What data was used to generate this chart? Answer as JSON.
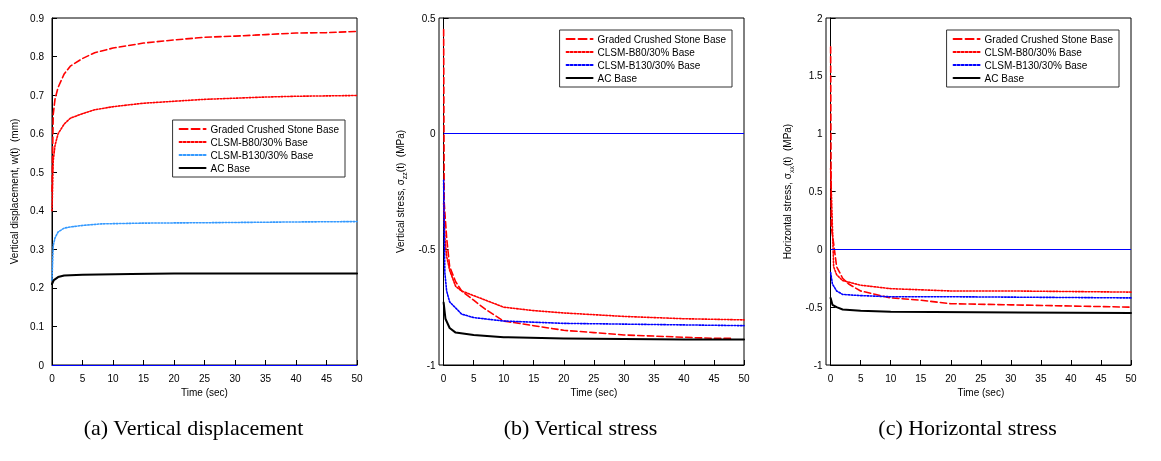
{
  "chart_data": [
    {
      "type": "line",
      "title": "(a) Vertical displacement",
      "xlabel": "Time (sec)",
      "ylabel": "Vertical displacement, w(t)  (mm)",
      "xlim": [
        0,
        50
      ],
      "xticks": [
        0,
        5,
        10,
        15,
        20,
        25,
        30,
        35,
        40,
        45,
        50
      ],
      "ylim": [
        0,
        0.9
      ],
      "yticks": [
        0,
        0.1,
        0.2,
        0.3,
        0.4,
        0.5,
        0.6,
        0.7,
        0.8,
        0.9
      ],
      "grid": false,
      "legend": "right",
      "marker": "none",
      "ref_lines": [
        {
          "axis": "y",
          "value": 0,
          "color": "#0000ff"
        }
      ],
      "series": [
        {
          "name": "Graded Crushed Stone Base",
          "color": "#ff0000",
          "line_style": "dashed",
          "x": [
            0,
            0.2,
            0.5,
            1,
            2,
            3,
            5,
            7,
            10,
            15,
            20,
            25,
            30,
            35,
            40,
            45,
            50
          ],
          "values": [
            0.45,
            0.65,
            0.69,
            0.72,
            0.755,
            0.775,
            0.795,
            0.81,
            0.822,
            0.835,
            0.843,
            0.85,
            0.853,
            0.857,
            0.861,
            0.862,
            0.865
          ]
        },
        {
          "name": "CLSM-B80/30% Base",
          "color": "#ff0000",
          "line_style": "dotted",
          "x": [
            0,
            0.2,
            0.5,
            1,
            2,
            3,
            5,
            7,
            10,
            15,
            20,
            25,
            30,
            35,
            40,
            45,
            50
          ],
          "values": [
            0.4,
            0.53,
            0.57,
            0.6,
            0.625,
            0.64,
            0.652,
            0.662,
            0.67,
            0.679,
            0.684,
            0.689,
            0.692,
            0.695,
            0.697,
            0.698,
            0.699
          ]
        },
        {
          "name": "CLSM-B130/30% Base",
          "color": "#3399ff",
          "line_style": "dotted",
          "x": [
            0,
            0.2,
            0.5,
            1,
            2,
            3,
            5,
            8,
            15,
            25,
            40,
            50
          ],
          "values": [
            0.22,
            0.31,
            0.33,
            0.345,
            0.355,
            0.358,
            0.362,
            0.366,
            0.368,
            0.369,
            0.371,
            0.372
          ]
        },
        {
          "name": "AC Base",
          "color": "#000000",
          "line_style": "solid",
          "x": [
            0,
            0.3,
            1,
            2,
            5,
            13,
            20,
            50
          ],
          "values": [
            0.21,
            0.22,
            0.228,
            0.232,
            0.234,
            0.236,
            0.237,
            0.237
          ]
        }
      ]
    },
    {
      "type": "line",
      "title": "(b) Vertical stress",
      "xlabel": "Time (sec)",
      "ylabel": "Vertical stress, σ$_{zz}$(t)  (MPa)",
      "xlim": [
        0,
        50
      ],
      "xticks": [
        0,
        5,
        10,
        15,
        20,
        25,
        30,
        35,
        40,
        45,
        50
      ],
      "ylim": [
        -1,
        0.5
      ],
      "yticks": [
        -1,
        -0.5,
        0,
        0.5
      ],
      "grid": false,
      "legend": "top right",
      "marker": "none",
      "ref_lines": [
        {
          "axis": "y",
          "value": 0,
          "color": "#0000ff"
        }
      ],
      "series": [
        {
          "name": "Graded Crushed Stone Base",
          "color": "#ff0000",
          "line_style": "dashed",
          "x": [
            0,
            0.1,
            0.5,
            1,
            2,
            3,
            5,
            7,
            10,
            15,
            20,
            25,
            30,
            35,
            40,
            45,
            48
          ],
          "values": [
            0.45,
            -0.3,
            -0.45,
            -0.575,
            -0.64,
            -0.68,
            -0.72,
            -0.76,
            -0.81,
            -0.83,
            -0.85,
            -0.86,
            -0.87,
            -0.875,
            -0.88,
            -0.885,
            -0.885
          ]
        },
        {
          "name": "CLSM-B80/30% Base",
          "color": "#ff0000",
          "line_style": "dotted",
          "x": [
            0,
            0.2,
            0.5,
            1,
            2,
            3,
            5,
            10,
            15,
            20,
            30,
            40,
            50
          ],
          "values": [
            -0.3,
            -0.45,
            -0.53,
            -0.59,
            -0.66,
            -0.68,
            -0.7,
            -0.75,
            -0.765,
            -0.775,
            -0.79,
            -0.8,
            -0.805
          ]
        },
        {
          "name": "CLSM-B130/30% Base",
          "color": "#0000ff",
          "line_style": "dotted",
          "x": [
            0,
            0.2,
            0.5,
            1,
            3,
            5,
            10,
            20,
            35,
            50
          ],
          "values": [
            -0.2,
            -0.6,
            -0.68,
            -0.727,
            -0.78,
            -0.795,
            -0.81,
            -0.82,
            -0.825,
            -0.83
          ]
        },
        {
          "name": "AC Base",
          "color": "#000000",
          "line_style": "solid",
          "x": [
            0,
            0.3,
            1,
            2,
            5,
            10,
            20,
            40,
            50
          ],
          "values": [
            -0.73,
            -0.8,
            -0.84,
            -0.86,
            -0.87,
            -0.88,
            -0.885,
            -0.89,
            -0.89
          ]
        }
      ]
    },
    {
      "type": "line",
      "title": "(c) Horizontal stress",
      "xlabel": "Time (sec)",
      "ylabel": "Horizontal stress, σ$_{xx}$(t)  (MPa)",
      "xlim": [
        0,
        50
      ],
      "xticks": [
        0,
        5,
        10,
        15,
        20,
        25,
        30,
        35,
        40,
        45,
        50
      ],
      "ylim": [
        -1,
        2
      ],
      "yticks": [
        -1,
        -0.5,
        0,
        0.5,
        1,
        1.5,
        2
      ],
      "grid": false,
      "legend": "top right",
      "marker": "none",
      "ref_lines": [
        {
          "axis": "y",
          "value": 0,
          "color": "#0000ff"
        }
      ],
      "series": [
        {
          "name": "Graded Crushed Stone Base",
          "color": "#ff0000",
          "line_style": "dashed",
          "x": [
            0,
            0.1,
            0.5,
            1,
            2,
            3,
            5,
            10,
            15,
            20,
            30,
            40,
            50
          ],
          "values": [
            1.75,
            0.2,
            0.05,
            -0.15,
            -0.25,
            -0.3,
            -0.36,
            -0.42,
            -0.44,
            -0.47,
            -0.48,
            -0.49,
            -0.5
          ]
        },
        {
          "name": "CLSM-B80/30% Base",
          "color": "#ff0000",
          "line_style": "dotted",
          "x": [
            0,
            0.5,
            1,
            2,
            5,
            10,
            20,
            30,
            50
          ],
          "values": [
            0.7,
            -0.15,
            -0.22,
            -0.27,
            -0.31,
            -0.34,
            -0.36,
            -0.36,
            -0.37
          ]
        },
        {
          "name": "CLSM-B130/30% Base",
          "color": "#0000ff",
          "line_style": "dotted",
          "x": [
            0,
            0.3,
            1,
            2,
            5,
            10,
            20,
            50
          ],
          "values": [
            -0.2,
            -0.3,
            -0.36,
            -0.39,
            -0.4,
            -0.41,
            -0.41,
            -0.42
          ]
        },
        {
          "name": "AC Base",
          "color": "#000000",
          "line_style": "solid",
          "x": [
            0,
            0.3,
            1,
            2,
            5,
            10,
            50
          ],
          "values": [
            -0.42,
            -0.48,
            -0.5,
            -0.52,
            -0.53,
            -0.54,
            -0.55
          ]
        }
      ]
    }
  ]
}
